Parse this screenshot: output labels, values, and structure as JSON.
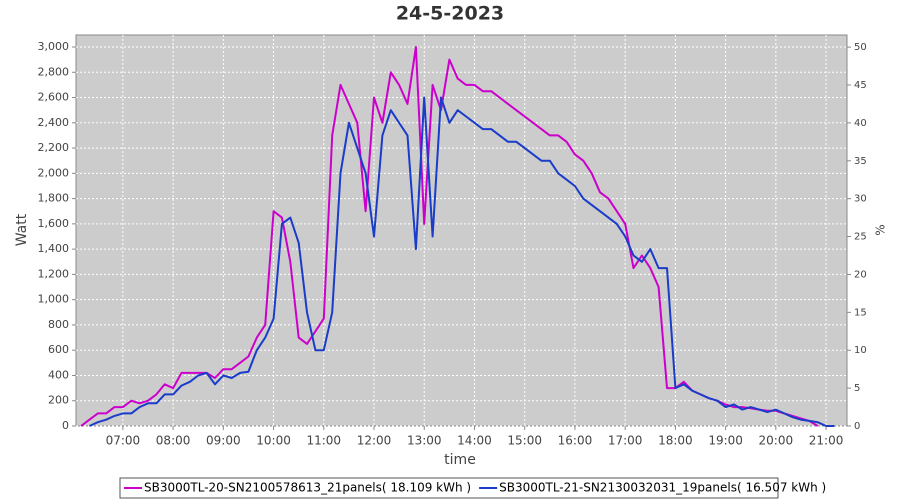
{
  "chart_data": {
    "type": "line",
    "title": "24-5-2023",
    "x_label": "time",
    "y_label": "Watt",
    "y2_label": "%",
    "x": [
      "06:10",
      "06:20",
      "06:30",
      "06:40",
      "06:50",
      "07:00",
      "07:10",
      "07:20",
      "07:30",
      "07:40",
      "07:50",
      "08:00",
      "08:10",
      "08:20",
      "08:30",
      "08:40",
      "08:50",
      "09:00",
      "09:10",
      "09:20",
      "09:30",
      "09:40",
      "09:50",
      "10:00",
      "10:10",
      "10:20",
      "10:30",
      "10:40",
      "10:50",
      "11:00",
      "11:10",
      "11:20",
      "11:30",
      "11:40",
      "11:50",
      "12:00",
      "12:10",
      "12:20",
      "12:30",
      "12:40",
      "12:50",
      "13:00",
      "13:10",
      "13:20",
      "13:30",
      "13:40",
      "13:50",
      "14:00",
      "14:10",
      "14:20",
      "14:30",
      "14:40",
      "14:50",
      "15:00",
      "15:10",
      "15:20",
      "15:30",
      "15:40",
      "15:50",
      "16:00",
      "16:10",
      "16:20",
      "16:30",
      "16:40",
      "16:50",
      "17:00",
      "17:10",
      "17:20",
      "17:30",
      "17:40",
      "17:50",
      "18:00",
      "18:10",
      "18:20",
      "18:30",
      "18:40",
      "18:50",
      "19:00",
      "19:10",
      "19:20",
      "19:30",
      "19:40",
      "19:50",
      "20:00",
      "20:10",
      "20:20",
      "20:30",
      "20:40",
      "20:50",
      "21:00",
      "21:10"
    ],
    "series": [
      {
        "name": "SB3000TL-20-SN2100578613_21panels( 18.109 kWh )",
        "color": "#cc00cc",
        "values": [
          0,
          50,
          100,
          100,
          150,
          150,
          200,
          180,
          200,
          250,
          330,
          300,
          420,
          420,
          420,
          420,
          380,
          450,
          450,
          500,
          550,
          700,
          800,
          1700,
          1650,
          1300,
          700,
          650,
          750,
          850,
          2300,
          2700,
          2550,
          2400,
          1700,
          2600,
          2400,
          2800,
          2700,
          2550,
          3000,
          1600,
          2700,
          2500,
          2900,
          2750,
          2700,
          2700,
          2650,
          2650,
          2600,
          2550,
          2500,
          2450,
          2400,
          2350,
          2300,
          2300,
          2250,
          2150,
          2100,
          2000,
          1850,
          1800,
          1700,
          1600,
          1250,
          1350,
          1250,
          1100,
          300,
          300,
          350,
          280,
          250,
          220,
          200,
          170,
          150,
          150,
          140,
          130,
          120,
          120,
          100,
          80,
          60,
          40,
          0,
          null,
          null
        ]
      },
      {
        "name": "SB3000TL-21-SN2130032031_19panels( 16.507 kWh )",
        "color": "#1a3cc8",
        "values": [
          null,
          0,
          30,
          50,
          80,
          100,
          100,
          150,
          180,
          180,
          250,
          250,
          320,
          350,
          400,
          420,
          330,
          400,
          380,
          420,
          430,
          600,
          700,
          850,
          1600,
          1650,
          1450,
          900,
          600,
          600,
          900,
          2000,
          2400,
          2200,
          2000,
          1500,
          2300,
          2500,
          2400,
          2300,
          1400,
          2600,
          1500,
          2600,
          2400,
          2500,
          2450,
          2400,
          2350,
          2350,
          2300,
          2250,
          2250,
          2200,
          2150,
          2100,
          2100,
          2000,
          1950,
          1900,
          1800,
          1750,
          1700,
          1650,
          1600,
          1500,
          1350,
          1300,
          1400,
          1250,
          1250,
          300,
          330,
          280,
          250,
          220,
          200,
          150,
          170,
          130,
          150,
          130,
          110,
          130,
          100,
          70,
          50,
          40,
          30,
          0,
          0
        ]
      }
    ],
    "xlim": [
      "06:04",
      "21:25"
    ],
    "xticks": [
      "07:00",
      "08:00",
      "09:00",
      "10:00",
      "11:00",
      "12:00",
      "13:00",
      "14:00",
      "15:00",
      "16:00",
      "17:00",
      "18:00",
      "19:00",
      "20:00",
      "21:00"
    ],
    "ylim": [
      0,
      3095
    ],
    "yticks": [
      0,
      200,
      400,
      600,
      800,
      {
        "value": 1000,
        "label": "1,000"
      },
      {
        "value": 1200,
        "label": "1,200"
      },
      {
        "value": 1400,
        "label": "1,400"
      },
      {
        "value": 1600,
        "label": "1,600"
      },
      {
        "value": 1800,
        "label": "1,800"
      },
      {
        "value": 2000,
        "label": "2,000"
      },
      {
        "value": 2200,
        "label": "2,200"
      },
      {
        "value": 2400,
        "label": "2,400"
      },
      {
        "value": 2600,
        "label": "2,600"
      },
      {
        "value": 2800,
        "label": "2,800"
      },
      {
        "value": 3000,
        "label": "3,000"
      }
    ],
    "y2lim": [
      0,
      51.6
    ],
    "y2ticks": [
      0,
      5,
      10,
      15,
      20,
      25,
      30,
      35,
      40,
      45,
      50
    ],
    "grid": true
  }
}
